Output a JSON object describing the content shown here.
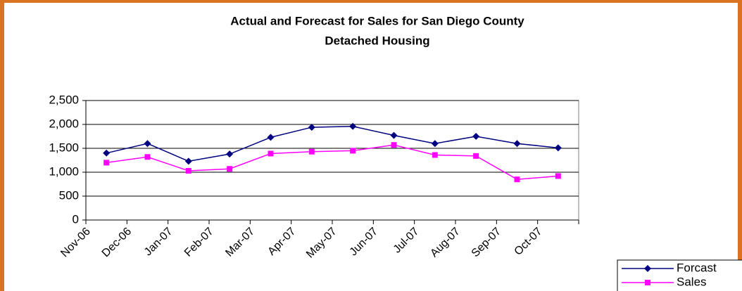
{
  "chart_data": {
    "type": "line",
    "title": "Actual and Forecast for Sales for San Diego County",
    "subtitle": "Detached Housing",
    "categories": [
      "Nov-06",
      "Dec-06",
      "Jan-07",
      "Feb-07",
      "Mar-07",
      "Apr-07",
      "May-07",
      "Jun-07",
      "Jul-07",
      "Aug-07",
      "Sep-07",
      "Oct-07"
    ],
    "series": [
      {
        "name": "Forcast",
        "color": "#000080",
        "marker": "diamond",
        "values": [
          1400,
          1600,
          1230,
          1380,
          1730,
          1940,
          1960,
          1770,
          1600,
          1750,
          1600,
          1510
        ]
      },
      {
        "name": "Sales",
        "color": "#ff00ff",
        "marker": "square",
        "values": [
          1200,
          1320,
          1030,
          1070,
          1390,
          1430,
          1450,
          1570,
          1360,
          1340,
          850,
          920
        ]
      }
    ],
    "ylim": [
      0,
      2500
    ],
    "yticks": [
      0,
      500,
      {
        "value": 1000,
        "label": "1,000"
      },
      {
        "value": 1500,
        "label": "1,500"
      },
      {
        "value": 2000,
        "label": "2,000"
      },
      {
        "value": 2500,
        "label": "2,500"
      }
    ],
    "grid": true,
    "legend": "bottom-right"
  }
}
